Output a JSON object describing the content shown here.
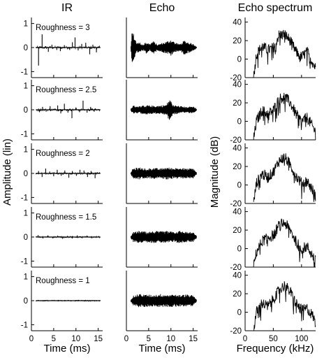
{
  "chart_data": {
    "type": "line",
    "column_titles": [
      "IR",
      "Echo",
      "Echo spectrum"
    ],
    "xlabels": [
      "Time (ms)",
      "Time (ms)",
      "Frequency (kHz)"
    ],
    "ylabels": [
      "Amplitude (lin)",
      "",
      "Magnitude (dB)"
    ],
    "label_prefix": "Roughness = ",
    "roughness": [
      3,
      2.5,
      2,
      1.5,
      1
    ],
    "time_axis": {
      "xlim": [
        0,
        16
      ],
      "xticks": [
        0,
        5,
        10,
        15
      ]
    },
    "amplitude_axis": {
      "ylim": [
        -1.25,
        1.25
      ],
      "yticks": [
        -1,
        0,
        1
      ]
    },
    "spectrum_axis": {
      "xlim": [
        0,
        125
      ],
      "xticks": [
        0,
        50,
        100
      ],
      "ylim": [
        -20,
        45
      ],
      "yticks": [
        -20,
        0,
        20,
        40
      ]
    },
    "ir_spikes": [
      [
        [
          1.6,
          -0.75
        ],
        [
          2.4,
          0.55
        ],
        [
          3.8,
          -0.18
        ],
        [
          4.6,
          0.12
        ],
        [
          5.7,
          -0.1
        ],
        [
          6.5,
          -0.15
        ],
        [
          7.4,
          0.1
        ],
        [
          8.6,
          -0.1
        ],
        [
          9.2,
          0.22
        ],
        [
          9.8,
          0.42
        ],
        [
          10.5,
          -0.12
        ],
        [
          11.3,
          0.15
        ],
        [
          12.2,
          0.2
        ],
        [
          13.1,
          -0.28
        ],
        [
          13.8,
          0.12
        ],
        [
          14.6,
          -0.2
        ]
      ],
      [
        [
          1.8,
          -0.1
        ],
        [
          2.5,
          0.12
        ],
        [
          3.3,
          -0.08
        ],
        [
          4.2,
          0.15
        ],
        [
          5.1,
          0.05
        ],
        [
          5.9,
          0.18
        ],
        [
          6.6,
          -0.15
        ],
        [
          7.4,
          0.25
        ],
        [
          8.2,
          -0.12
        ],
        [
          9.1,
          -0.35
        ],
        [
          10.0,
          0.1
        ],
        [
          10.8,
          -0.1
        ],
        [
          11.6,
          0.38
        ],
        [
          12.5,
          -0.12
        ],
        [
          13.3,
          0.12
        ],
        [
          14.1,
          -0.08
        ]
      ],
      [
        [
          1.6,
          0.1
        ],
        [
          2.4,
          -0.15
        ],
        [
          3.2,
          0.2
        ],
        [
          4.1,
          0.08
        ],
        [
          5.0,
          -0.12
        ],
        [
          5.8,
          0.15
        ],
        [
          6.7,
          -0.1
        ],
        [
          7.5,
          0.12
        ],
        [
          8.4,
          -0.18
        ],
        [
          9.2,
          0.1
        ],
        [
          10.1,
          -0.1
        ],
        [
          10.9,
          0.15
        ],
        [
          11.8,
          0.12
        ],
        [
          12.6,
          -0.15
        ],
        [
          13.4,
          0.1
        ],
        [
          14.3,
          -0.2
        ]
      ],
      [
        [
          1.5,
          0.08
        ],
        [
          2.6,
          -0.06
        ],
        [
          3.7,
          0.07
        ],
        [
          4.8,
          -0.05
        ],
        [
          5.9,
          0.06
        ],
        [
          7.0,
          -0.07
        ],
        [
          8.1,
          0.05
        ],
        [
          9.2,
          -0.06
        ],
        [
          10.3,
          0.07
        ],
        [
          11.4,
          -0.05
        ],
        [
          12.5,
          0.06
        ],
        [
          13.6,
          -0.05
        ]
      ],
      [
        [
          1.5,
          0.03
        ],
        [
          3.0,
          -0.03
        ],
        [
          4.5,
          0.02
        ],
        [
          6.0,
          -0.03
        ],
        [
          7.5,
          0.03
        ],
        [
          9.0,
          -0.02
        ],
        [
          10.5,
          0.03
        ],
        [
          12.0,
          -0.03
        ],
        [
          13.5,
          0.02
        ]
      ]
    ],
    "echo_envelope": [
      [
        [
          1.0,
          0.05
        ],
        [
          1.2,
          0.75
        ],
        [
          1.8,
          0.5
        ],
        [
          2.3,
          0.2
        ],
        [
          3.0,
          0.22
        ],
        [
          3.8,
          0.12
        ],
        [
          4.5,
          0.25
        ],
        [
          5.2,
          0.15
        ],
        [
          6.0,
          0.28
        ],
        [
          7.0,
          0.12
        ],
        [
          8.0,
          0.2
        ],
        [
          9.0,
          0.25
        ],
        [
          10.0,
          0.35
        ],
        [
          11.0,
          0.2
        ],
        [
          12.0,
          0.15
        ],
        [
          13.0,
          0.3
        ],
        [
          14.0,
          0.22
        ],
        [
          15.0,
          0.15
        ],
        [
          15.8,
          0.04
        ]
      ],
      [
        [
          1.0,
          0.05
        ],
        [
          1.5,
          0.18
        ],
        [
          3.0,
          0.15
        ],
        [
          4.5,
          0.2
        ],
        [
          6.0,
          0.17
        ],
        [
          7.5,
          0.18
        ],
        [
          9.0,
          0.22
        ],
        [
          9.7,
          0.48
        ],
        [
          10.5,
          0.2
        ],
        [
          12.0,
          0.16
        ],
        [
          13.5,
          0.12
        ],
        [
          15.0,
          0.15
        ],
        [
          15.8,
          0.04
        ]
      ],
      [
        [
          1.0,
          0.05
        ],
        [
          1.5,
          0.22
        ],
        [
          3.0,
          0.25
        ],
        [
          4.5,
          0.2
        ],
        [
          6.0,
          0.24
        ],
        [
          7.5,
          0.2
        ],
        [
          9.0,
          0.26
        ],
        [
          10.5,
          0.22
        ],
        [
          12.0,
          0.24
        ],
        [
          13.5,
          0.2
        ],
        [
          15.0,
          0.22
        ],
        [
          15.8,
          0.04
        ]
      ],
      [
        [
          1.0,
          0.05
        ],
        [
          1.5,
          0.2
        ],
        [
          3.0,
          0.26
        ],
        [
          4.5,
          0.22
        ],
        [
          6.0,
          0.25
        ],
        [
          7.5,
          0.24
        ],
        [
          9.0,
          0.25
        ],
        [
          10.5,
          0.22
        ],
        [
          12.0,
          0.26
        ],
        [
          13.5,
          0.22
        ],
        [
          15.0,
          0.2
        ],
        [
          15.8,
          0.04
        ]
      ],
      [
        [
          1.0,
          0.05
        ],
        [
          1.5,
          0.2
        ],
        [
          3.0,
          0.28
        ],
        [
          4.5,
          0.26
        ],
        [
          6.0,
          0.24
        ],
        [
          7.5,
          0.28
        ],
        [
          9.0,
          0.26
        ],
        [
          10.5,
          0.27
        ],
        [
          12.0,
          0.24
        ],
        [
          13.5,
          0.26
        ],
        [
          15.0,
          0.22
        ],
        [
          15.8,
          0.04
        ]
      ]
    ],
    "spectrum_envelope": [
      [
        [
          15,
          -20
        ],
        [
          20,
          5
        ],
        [
          30,
          14
        ],
        [
          40,
          10
        ],
        [
          50,
          12
        ],
        [
          60,
          26
        ],
        [
          70,
          27
        ],
        [
          80,
          20
        ],
        [
          90,
          8
        ],
        [
          100,
          2
        ],
        [
          110,
          8
        ],
        [
          120,
          -4
        ],
        [
          125,
          -10
        ]
      ],
      [
        [
          15,
          -20
        ],
        [
          20,
          0
        ],
        [
          30,
          12
        ],
        [
          40,
          8
        ],
        [
          50,
          12
        ],
        [
          60,
          24
        ],
        [
          70,
          27
        ],
        [
          80,
          20
        ],
        [
          90,
          8
        ],
        [
          100,
          0
        ],
        [
          110,
          4
        ],
        [
          120,
          -6
        ],
        [
          125,
          -12
        ]
      ],
      [
        [
          15,
          -20
        ],
        [
          20,
          2
        ],
        [
          30,
          12
        ],
        [
          40,
          8
        ],
        [
          50,
          14
        ],
        [
          60,
          26
        ],
        [
          70,
          30
        ],
        [
          80,
          22
        ],
        [
          90,
          10
        ],
        [
          100,
          2
        ],
        [
          110,
          4
        ],
        [
          120,
          -6
        ],
        [
          125,
          -12
        ]
      ],
      [
        [
          15,
          -20
        ],
        [
          20,
          -4
        ],
        [
          30,
          8
        ],
        [
          40,
          12
        ],
        [
          50,
          14
        ],
        [
          60,
          25
        ],
        [
          70,
          28
        ],
        [
          80,
          20
        ],
        [
          90,
          8
        ],
        [
          100,
          0
        ],
        [
          110,
          2
        ],
        [
          120,
          -8
        ],
        [
          125,
          -14
        ]
      ],
      [
        [
          15,
          -20
        ],
        [
          20,
          0
        ],
        [
          30,
          10
        ],
        [
          40,
          6
        ],
        [
          50,
          14
        ],
        [
          60,
          24
        ],
        [
          70,
          29
        ],
        [
          80,
          22
        ],
        [
          90,
          10
        ],
        [
          100,
          2
        ],
        [
          110,
          4
        ],
        [
          120,
          -4
        ],
        [
          125,
          -12
        ]
      ]
    ]
  }
}
